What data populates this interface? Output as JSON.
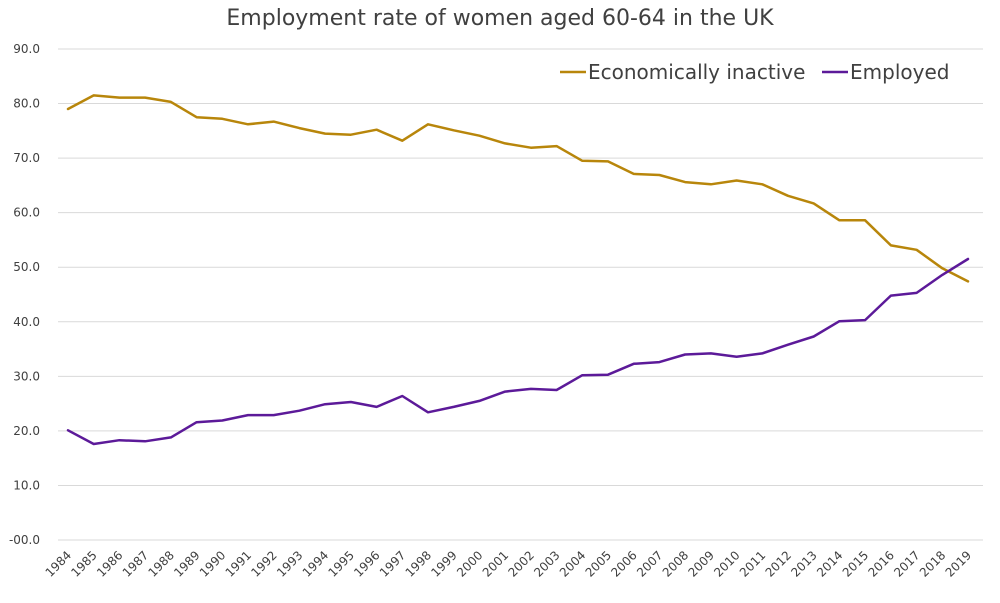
{
  "chart_data": {
    "type": "line",
    "title": "Employment rate of women aged 60-64 in the UK",
    "xlabel": "",
    "ylabel": "",
    "x": [
      "1984",
      "1985",
      "1986",
      "1987",
      "1988",
      "1989",
      "1990",
      "1991",
      "1992",
      "1993",
      "1994",
      "1995",
      "1996",
      "1997",
      "1998",
      "1999",
      "2000",
      "2001",
      "2002",
      "2003",
      "2004",
      "2005",
      "2006",
      "2007",
      "2008",
      "2009",
      "2010",
      "2011",
      "2012",
      "2013",
      "2014",
      "2015",
      "2016",
      "2017",
      "2018",
      "2019"
    ],
    "ylim": [
      0,
      90
    ],
    "yticks": [
      0,
      10,
      20,
      30,
      40,
      50,
      60,
      70,
      80,
      90
    ],
    "ytick_labels": [
      "-00.0",
      "10.0",
      "20.0",
      "30.0",
      "40.0",
      "50.0",
      "60.0",
      "70.0",
      "80.0",
      "90.0"
    ],
    "grid": true,
    "legend_position": "top-right",
    "series": [
      {
        "name": "Economically inactive",
        "color": "#b8860b",
        "values": [
          79.0,
          81.5,
          81.1,
          81.1,
          80.3,
          77.5,
          77.2,
          76.2,
          76.7,
          75.5,
          74.5,
          74.3,
          75.2,
          73.2,
          76.2,
          75.1,
          74.1,
          72.7,
          71.9,
          72.2,
          69.5,
          69.4,
          67.1,
          66.9,
          65.6,
          65.2,
          65.9,
          65.2,
          63.1,
          61.7,
          58.6,
          58.6,
          54.0,
          53.2,
          49.8,
          47.4
        ]
      },
      {
        "name": "Employed",
        "color": "#5c1a99",
        "values": [
          20.1,
          17.6,
          18.3,
          18.1,
          18.8,
          21.6,
          21.9,
          22.9,
          22.9,
          23.7,
          24.9,
          25.3,
          24.4,
          26.4,
          23.4,
          24.4,
          25.5,
          27.2,
          27.7,
          27.5,
          30.2,
          30.3,
          32.3,
          32.6,
          34.0,
          34.2,
          33.6,
          34.2,
          35.8,
          37.3,
          40.1,
          40.3,
          44.8,
          45.3,
          48.6,
          51.5
        ]
      }
    ]
  }
}
